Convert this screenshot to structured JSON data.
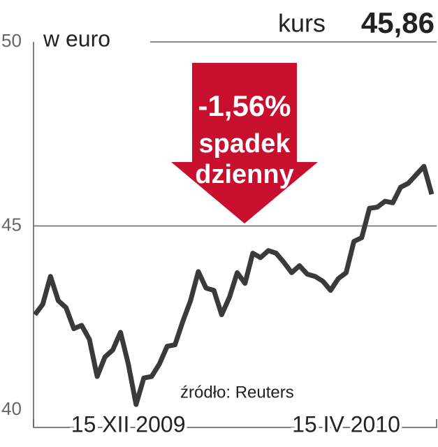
{
  "chart_data": {
    "type": "line",
    "header_label": "kurs",
    "header_value": "45,86",
    "y_label": "w euro",
    "annotation": {
      "change": "-1,56%",
      "line1": "spadek",
      "line2": "dzienny"
    },
    "source": "źródło: Reuters",
    "categories": [
      null,
      null,
      null,
      null,
      null,
      null,
      null,
      null,
      null,
      null,
      null,
      null,
      "15 XII 2009",
      null,
      null,
      null,
      null,
      null,
      null,
      null,
      null,
      null,
      null,
      null,
      null,
      null,
      null,
      null,
      null,
      null,
      null,
      null,
      null,
      null,
      null,
      null,
      null,
      null,
      null,
      null,
      "15 IV 2010",
      null,
      null,
      null,
      null,
      null,
      null,
      null,
      null,
      null,
      null,
      null
    ],
    "series": [
      {
        "name": "kurs",
        "color": "#3a3a3a",
        "values": [
          42.59,
          42.87,
          43.63,
          42.97,
          42.78,
          42.21,
          42.3,
          41.92,
          40.91,
          41.44,
          41.63,
          42.11,
          41.25,
          40.15,
          40.87,
          40.91,
          41.25,
          41.73,
          41.77,
          42.4,
          42.97,
          43.76,
          43.31,
          43.25,
          42.59,
          43.06,
          43.73,
          43.44,
          44.26,
          44.14,
          44.33,
          44.26,
          44.01,
          43.73,
          43.92,
          43.69,
          43.63,
          43.5,
          43.25,
          43.57,
          43.73,
          44.58,
          44.68,
          45.48,
          45.51,
          45.67,
          45.63,
          46.05,
          46.16,
          46.39,
          46.62,
          45.86
        ]
      }
    ],
    "ylim": [
      40,
      50
    ],
    "yticks": [
      40,
      45,
      50
    ],
    "grid": true,
    "arrow_color": "#c8102e"
  }
}
